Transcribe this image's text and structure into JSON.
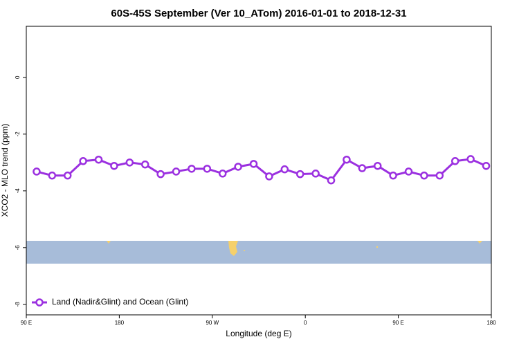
{
  "chart_data": {
    "type": "line",
    "title": "60S-45S September (Ver 10_ATom)   2016-01-01 to 2018-12-31",
    "x_label": "Longitude (deg E)",
    "y_label": "XCO2 - MLO trend (ppm)",
    "x": [
      100,
      115,
      130,
      145,
      160,
      175,
      190,
      205,
      220,
      235,
      250,
      265,
      280,
      295,
      310,
      325,
      340,
      355,
      370,
      385,
      400,
      415,
      430,
      445,
      460,
      475,
      490,
      505,
      520,
      535
    ],
    "series": [
      {
        "name": "Land (Nadir&Glint) and Ocean (Glint)",
        "color": "#9b30e0",
        "values": [
          -3.32,
          -3.46,
          -3.46,
          -2.95,
          -2.9,
          -3.12,
          -3.0,
          -3.07,
          -3.41,
          -3.32,
          -3.22,
          -3.22,
          -3.39,
          -3.15,
          -3.05,
          -3.49,
          -3.24,
          -3.41,
          -3.39,
          -3.63,
          -2.9,
          -3.2,
          -3.12,
          -3.46,
          -3.32,
          -3.46,
          -3.46,
          -2.95,
          -2.88,
          -3.12
        ]
      }
    ],
    "xlim": [
      90,
      540
    ],
    "xticks": [
      {
        "value": 90,
        "label": "90 E"
      },
      {
        "value": 180,
        "label": "180"
      },
      {
        "value": 270,
        "label": "90 W"
      },
      {
        "value": 360,
        "label": "0"
      },
      {
        "value": 450,
        "label": "90 E"
      },
      {
        "value": 540,
        "label": "180"
      }
    ],
    "ylim": [
      -8.37,
      1.8
    ],
    "yticks": [
      0,
      -2,
      -4,
      -6,
      -8
    ],
    "legend": "bottom-left"
  }
}
